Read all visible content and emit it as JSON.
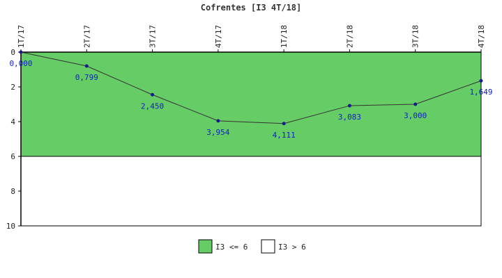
{
  "chart_data": {
    "type": "line",
    "title": "Cofrentes [I3 4T/18]",
    "categories": [
      "1T/17",
      "2T/17",
      "3T/17",
      "4T/17",
      "1T/18",
      "2T/18",
      "3T/18",
      "4T/18"
    ],
    "values": [
      0.0,
      0.799,
      2.45,
      3.954,
      4.111,
      3.083,
      3.0,
      1.649
    ],
    "value_labels": [
      "0,000",
      "0,799",
      "2,450",
      "3,954",
      "4,111",
      "3,083",
      "3,000",
      "1,649"
    ],
    "ylim": [
      10,
      0
    ],
    "y_inverted": true,
    "yticks": [
      0,
      2,
      4,
      6,
      8,
      10
    ],
    "ytick_labels": [
      "0",
      "2",
      "4",
      "6",
      "8",
      "10"
    ],
    "threshold": 6,
    "bands": [
      {
        "name": "I3 <= 6",
        "from": 0,
        "to": 6,
        "color": "#66cc66"
      },
      {
        "name": "I3 > 6",
        "from": 6,
        "to": 10,
        "color": "#ffffff"
      }
    ],
    "legend_position": "bottom-center",
    "line_color": "#333333",
    "marker_color": "#1a1a8c",
    "label_color": "#1020c8"
  }
}
